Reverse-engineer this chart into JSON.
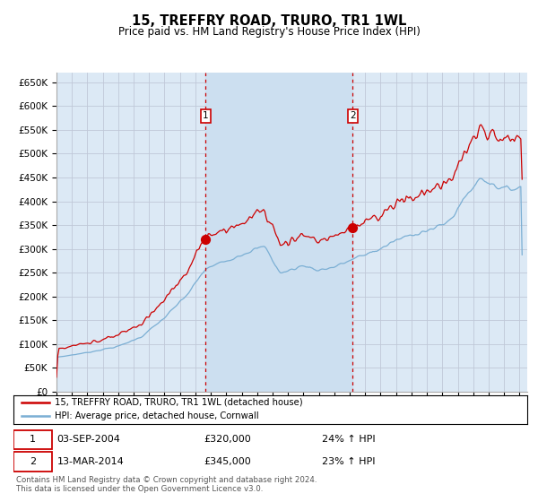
{
  "title": "15, TREFFRY ROAD, TRURO, TR1 1WL",
  "subtitle": "Price paid vs. HM Land Registry's House Price Index (HPI)",
  "red_label": "15, TREFFRY ROAD, TRURO, TR1 1WL (detached house)",
  "blue_label": "HPI: Average price, detached house, Cornwall",
  "transaction1": {
    "date": "03-SEP-2004",
    "price": 320000,
    "pct": "24%",
    "direction": "↑",
    "label": "1"
  },
  "transaction2": {
    "date": "13-MAR-2014",
    "price": 345000,
    "pct": "23%",
    "direction": "↑",
    "label": "2"
  },
  "t1_year": 2004.67,
  "t2_year": 2014.2,
  "footer": "Contains HM Land Registry data © Crown copyright and database right 2024.\nThis data is licensed under the Open Government Licence v3.0.",
  "ylim": [
    0,
    670000
  ],
  "xlim_start": 1995.0,
  "xlim_end": 2025.5,
  "yticks": [
    0,
    50000,
    100000,
    150000,
    200000,
    250000,
    300000,
    350000,
    400000,
    450000,
    500000,
    550000,
    600000,
    650000
  ],
  "bg_color": "#dce9f5",
  "grid_color": "#c0c8d8",
  "red_color": "#cc0000",
  "blue_color": "#7bafd4",
  "shade_color": "#ccdff0"
}
